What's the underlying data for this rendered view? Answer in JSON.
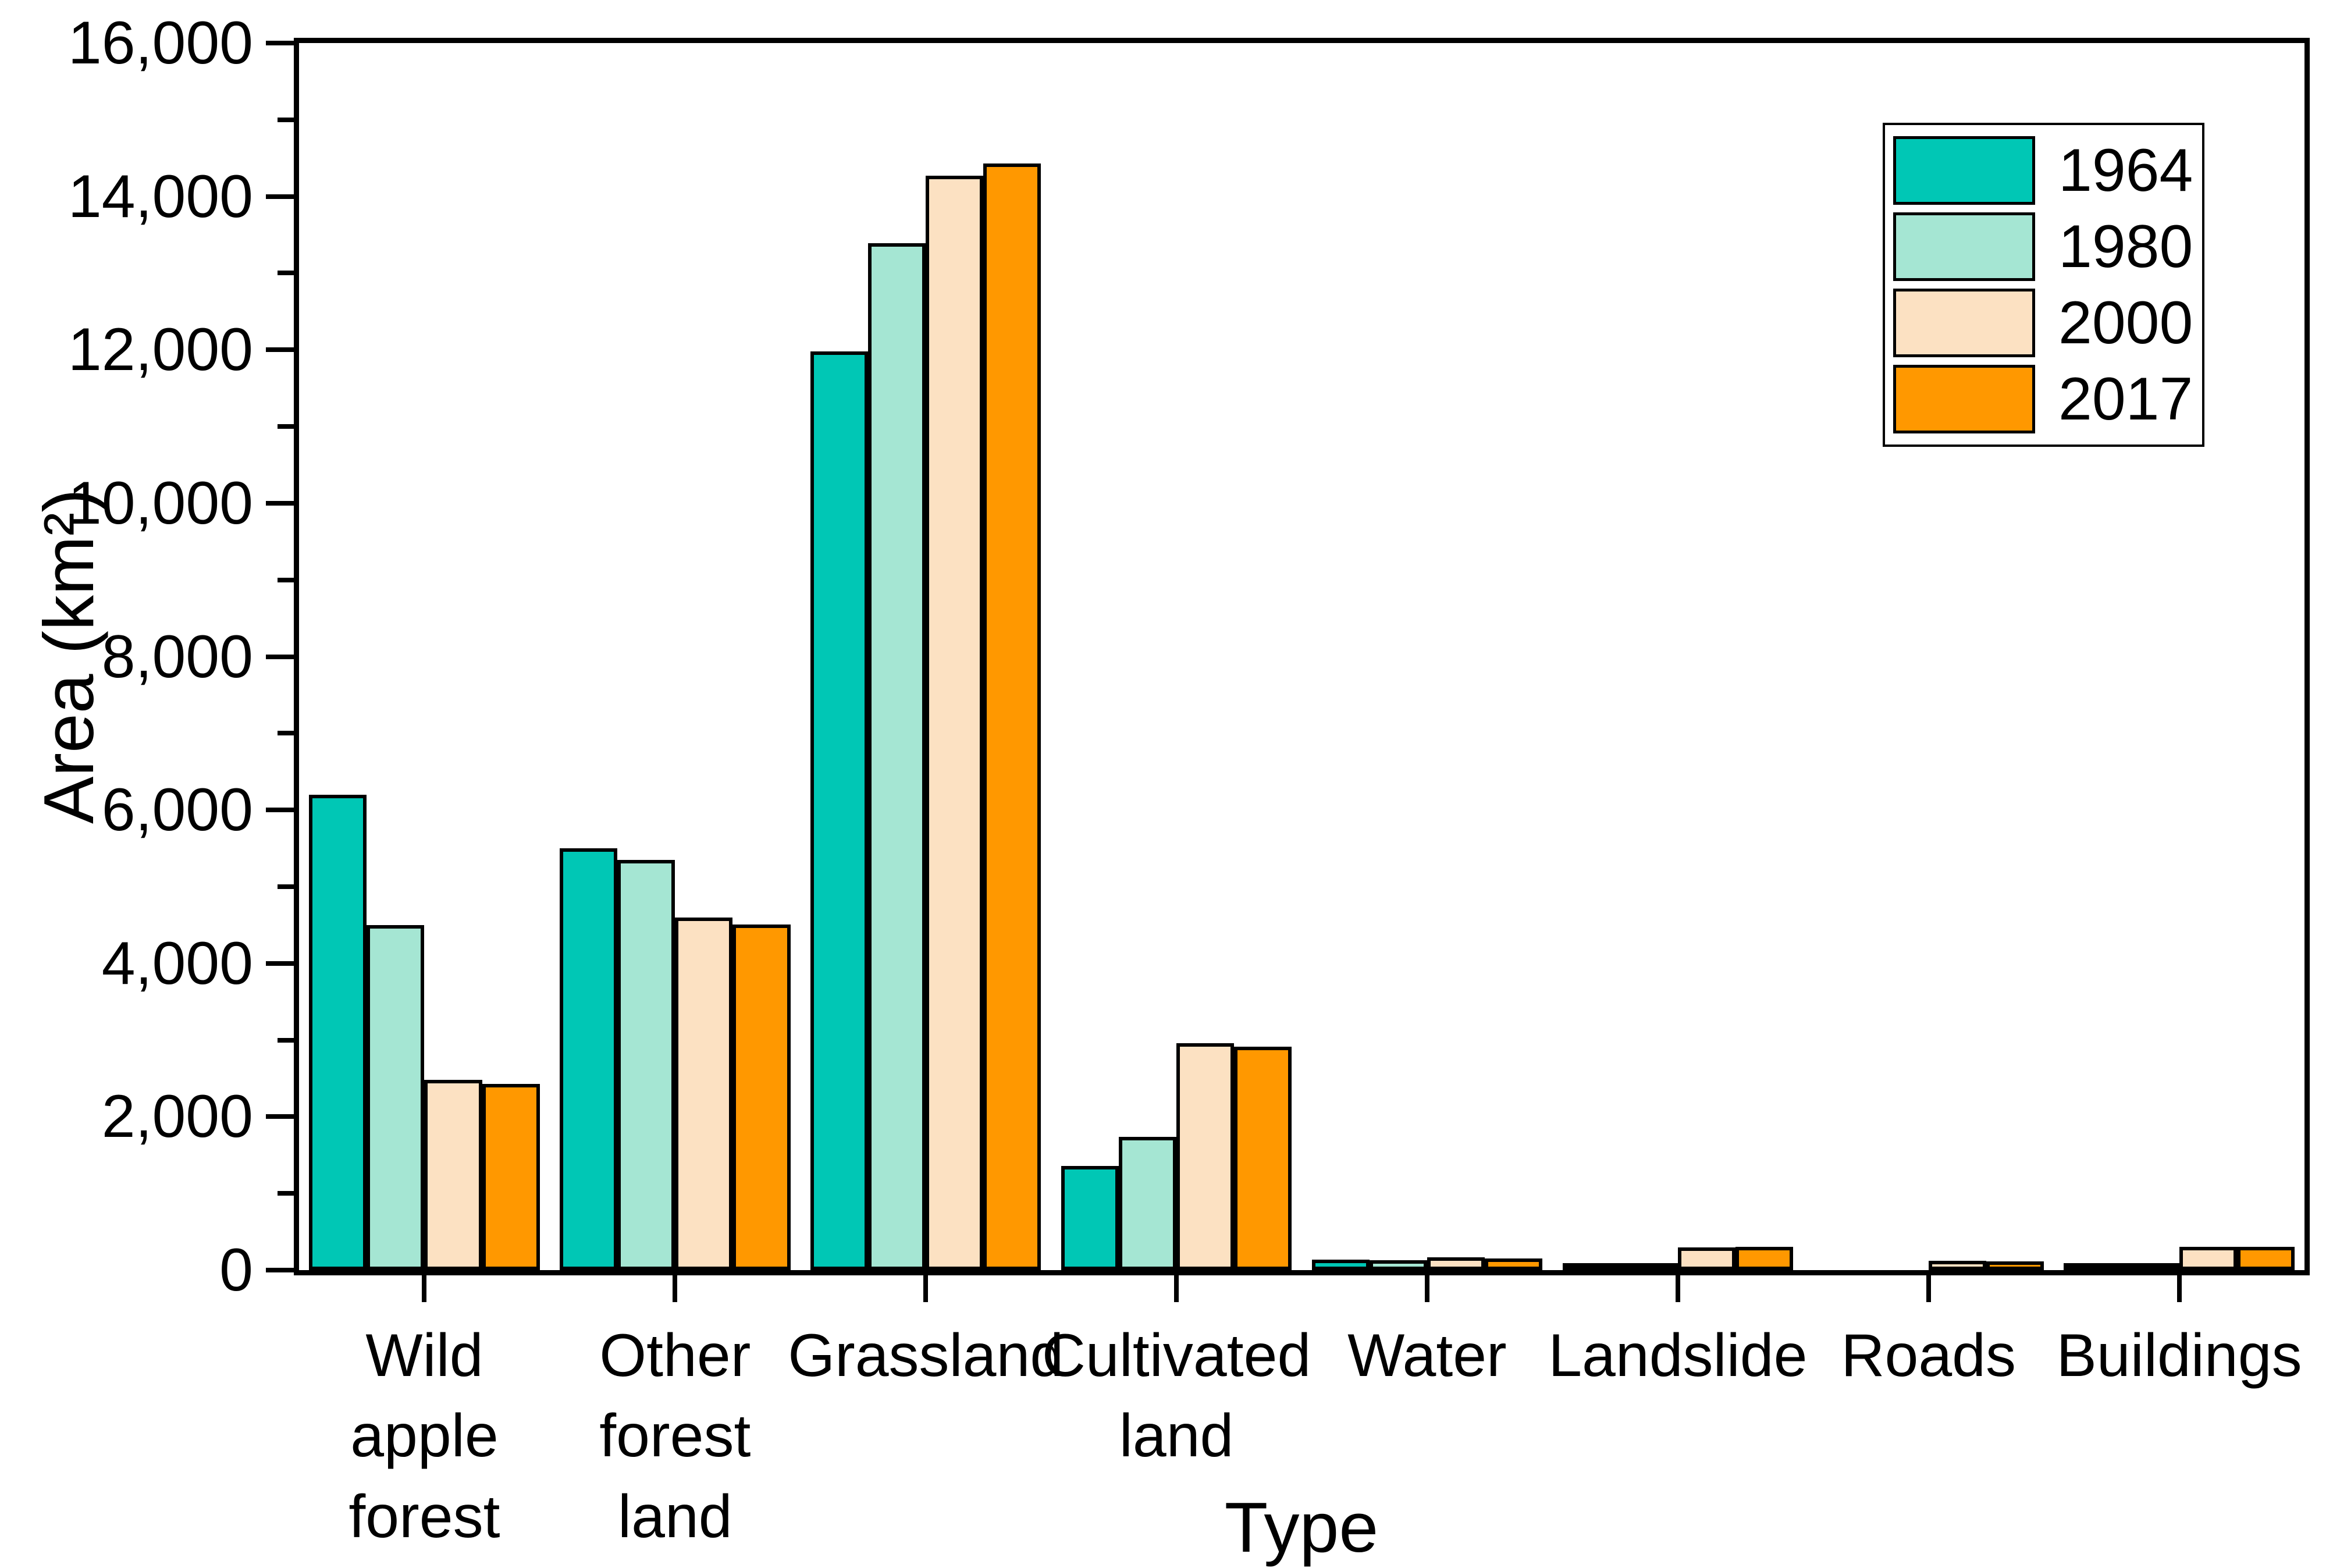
{
  "chart_data": {
    "type": "bar",
    "xlabel": "Type",
    "ylabel": "Area (km²)",
    "categories": [
      "Wild\napple\nforest",
      "Other\nforest\nland",
      "Grassland",
      "Cultivated\nland",
      "Water",
      "Landslide",
      "Roads",
      "Buildings"
    ],
    "series": [
      {
        "name": "1964",
        "color": "#00c7b5",
        "values": [
          6200,
          5500,
          11980,
          1360,
          140,
          70,
          0,
          35
        ]
      },
      {
        "name": "1980",
        "color": "#a5e6d3",
        "values": [
          4500,
          5350,
          13390,
          1740,
          130,
          55,
          0,
          80
        ]
      },
      {
        "name": "2000",
        "color": "#fce1c2",
        "values": [
          2480,
          4600,
          14270,
          2960,
          170,
          295,
          120,
          305
        ]
      },
      {
        "name": "2017",
        "color": "#ff9800",
        "values": [
          2430,
          4510,
          14430,
          2910,
          155,
          300,
          115,
          300
        ]
      }
    ],
    "y_axis": {
      "min": 0,
      "max": 16000,
      "major_step": 2000,
      "minor_step": 1000,
      "tick_labels": [
        "0",
        "2,000",
        "4,000",
        "6,000",
        "8,000",
        "10,000",
        "12,000",
        "14,000",
        "16,000"
      ]
    },
    "legend_position": "top-right",
    "grid": false,
    "axis_color": "#000000",
    "background_color": "#ffffff"
  }
}
